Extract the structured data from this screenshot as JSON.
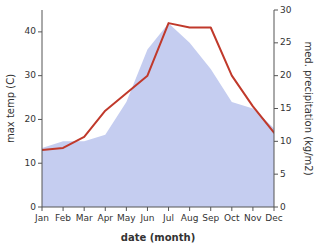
{
  "chart_data": {
    "type": "line",
    "xlabel": "date (month)",
    "ylabel": "max temp (C)",
    "y2label": "med. precipitation (kg/m2)",
    "categories": [
      "Jan",
      "Feb",
      "Mar",
      "Apr",
      "May",
      "Jun",
      "Jul",
      "Aug",
      "Sep",
      "Oct",
      "Nov",
      "Dec"
    ],
    "series": [
      {
        "type": "area",
        "axis": "y2",
        "color": "#c5cdf0",
        "values": [
          9,
          10,
          10,
          11,
          16,
          24,
          28,
          25,
          21,
          16,
          15,
          12
        ]
      },
      {
        "type": "line",
        "color": "#c0392b",
        "values": [
          13,
          13.5,
          16,
          22,
          26,
          30,
          42,
          41,
          41,
          30,
          23,
          17
        ]
      }
    ],
    "ylim": [
      0,
      45
    ],
    "yticks": [
      0,
      10,
      20,
      30,
      40
    ],
    "y2lim": [
      0,
      30
    ],
    "y2ticks": [
      0,
      5,
      10,
      15,
      20,
      25,
      30
    ],
    "grid": false
  }
}
